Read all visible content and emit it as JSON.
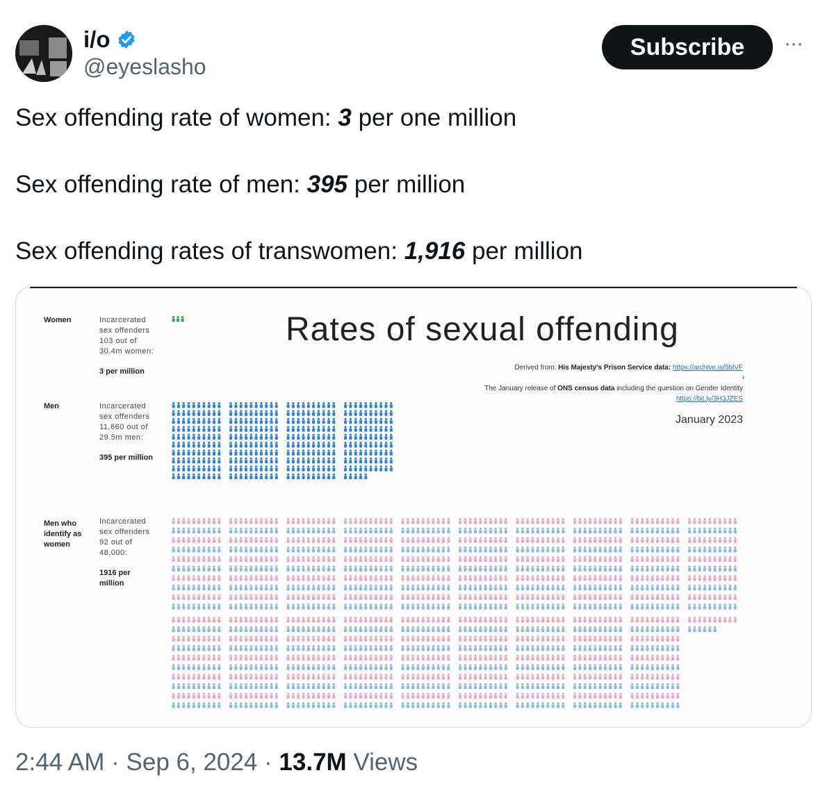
{
  "account": {
    "name": "i/o",
    "handle": "@eyeslasho",
    "subscribe_label": "Subscribe",
    "more_label": "···"
  },
  "tweet": [
    {
      "prefix": "Sex offending rate of women: ",
      "value": "3",
      "suffix": " per one million"
    },
    {
      "prefix": "Sex offending rate of men: ",
      "value": "395",
      "suffix": " per million"
    },
    {
      "prefix": "Sex offending rates of transwomen: ",
      "value": "1,916",
      "suffix": " per million"
    }
  ],
  "infographic": {
    "title": "Rates of sexual offending",
    "derived_prefix": "Derived from: ",
    "derived_source": "His Majesty's Prison Service data: ",
    "derived_link": "https://archive.is/5blVF",
    "plus": "+",
    "ons_prefix": "The January release of ",
    "ons_bold": "ONS census data",
    "ons_suffix": " including the question on Gender Identity",
    "ons_link": "https://bit.ly/3H3JZES",
    "date": "January 2023",
    "groups": [
      {
        "label": "Women",
        "desc": "Incarcerated sex offenders 103 out of 30.4m women:",
        "rate": "3 per million"
      },
      {
        "label": "Men",
        "desc": "Incarcerated sex offenders 11,660 out of 29.5m men:",
        "rate": "395 per million"
      },
      {
        "label": "Men who identify as women",
        "desc": "Incarcerated sex offenders 92 out of 48,000:",
        "rate": "1916 per million"
      }
    ]
  },
  "chart_data": {
    "type": "pictogram",
    "title": "Rates of sexual offending",
    "unit": "incarcerated sex offenders per million",
    "categories": [
      "Women",
      "Men",
      "Men who identify as women"
    ],
    "values": [
      3,
      395,
      1916
    ],
    "colors": {
      "women": "#2fa84f",
      "men": "#2e7fd1",
      "trans_pink": "#e9a6c4",
      "trans_blue": "#8ab7e6"
    }
  },
  "footer": {
    "time": "2:44 AM",
    "sep": " · ",
    "date": "Sep 6, 2024",
    "views_count": "13.7M",
    "views_label": " Views"
  }
}
